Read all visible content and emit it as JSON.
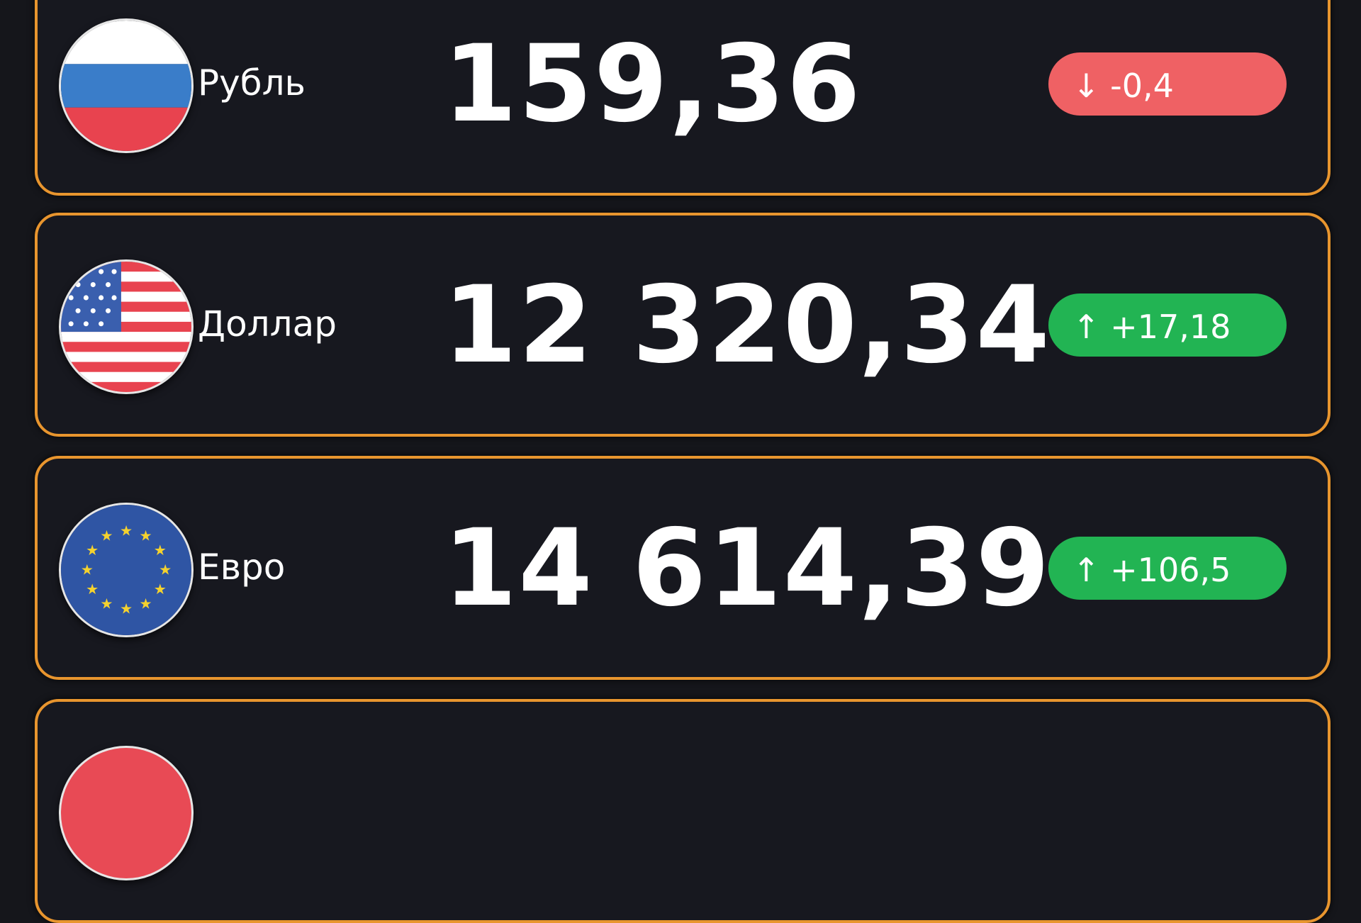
{
  "currencies": [
    {
      "name": "Рубль",
      "value": "159,36",
      "change": "-0,4",
      "direction": "down",
      "arrow": "↓",
      "flag": "russia-flag-icon"
    },
    {
      "name": "Доллар",
      "value": "12 320,34",
      "change": "+17,18",
      "direction": "up",
      "arrow": "↑",
      "flag": "usa-flag-icon"
    },
    {
      "name": "Евро",
      "value": "14 614,39",
      "change": "+106,5",
      "direction": "up",
      "arrow": "↑",
      "flag": "eu-flag-icon"
    },
    {
      "flag": "china-flag-icon"
    }
  ],
  "colors": {
    "border": "#e8952e",
    "down": "#ef6164",
    "up": "#22b453",
    "background": "#15161b"
  }
}
